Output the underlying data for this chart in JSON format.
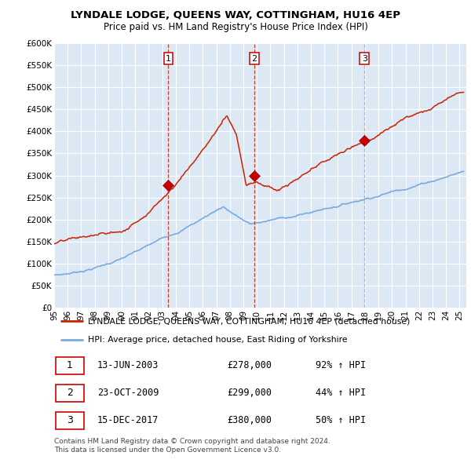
{
  "title": "LYNDALE LODGE, QUEENS WAY, COTTINGHAM, HU16 4EP",
  "subtitle": "Price paid vs. HM Land Registry's House Price Index (HPI)",
  "legend_line1": "LYNDALE LODGE, QUEENS WAY, COTTINGHAM, HU16 4EP (detached house)",
  "legend_line2": "HPI: Average price, detached house, East Riding of Yorkshire",
  "table_rows": [
    {
      "num": 1,
      "date": "13-JUN-2003",
      "price": "£278,000",
      "hpi": "92% ↑ HPI"
    },
    {
      "num": 2,
      "date": "23-OCT-2009",
      "price": "£299,000",
      "hpi": "44% ↑ HPI"
    },
    {
      "num": 3,
      "date": "15-DEC-2017",
      "price": "£380,000",
      "hpi": "50% ↑ HPI"
    }
  ],
  "footer": "Contains HM Land Registry data © Crown copyright and database right 2024.\nThis data is licensed under the Open Government Licence v3.0.",
  "sale_dates": [
    2003.45,
    2009.81,
    2017.96
  ],
  "sale_prices": [
    278000,
    299000,
    380000
  ],
  "red_line_color": "#cc2200",
  "blue_line_color": "#7aaadd",
  "bg_color": "#dce9f5",
  "grid_color": "#ffffff",
  "vline_red_color": "#cc2200",
  "vline_grey_color": "#aaaaaa",
  "ylim": [
    0,
    600000
  ],
  "xlim": [
    1995.0,
    2025.5
  ],
  "ytick_vals": [
    0,
    50000,
    100000,
    150000,
    200000,
    250000,
    300000,
    350000,
    400000,
    450000,
    500000,
    550000,
    600000
  ],
  "ytick_labels": [
    "£0",
    "£50K",
    "£100K",
    "£150K",
    "£200K",
    "£250K",
    "£300K",
    "£350K",
    "£400K",
    "£450K",
    "£500K",
    "£550K",
    "£600K"
  ],
  "xtick_vals": [
    1995,
    1996,
    1997,
    1998,
    1999,
    2000,
    2001,
    2002,
    2003,
    2004,
    2005,
    2006,
    2007,
    2008,
    2009,
    2010,
    2011,
    2012,
    2013,
    2014,
    2015,
    2016,
    2017,
    2018,
    2019,
    2020,
    2021,
    2022,
    2023,
    2024,
    2025
  ]
}
